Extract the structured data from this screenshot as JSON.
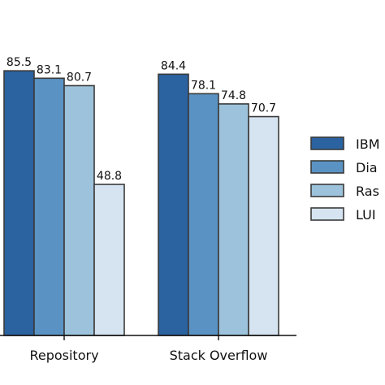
{
  "chart_data": {
    "type": "bar",
    "categories": [
      "Repository",
      "Stack Overflow"
    ],
    "series": [
      {
        "name": "IBM",
        "values": [
          85.5,
          84.4
        ],
        "color": "#2b62a0"
      },
      {
        "name": "Dia",
        "values": [
          83.1,
          78.1
        ],
        "color": "#5a93c3"
      },
      {
        "name": "Ras",
        "values": [
          80.7,
          74.8
        ],
        "color": "#9dc3dc"
      },
      {
        "name": "LUI",
        "values": [
          48.8,
          70.7
        ],
        "color": "#d6e4f1"
      }
    ],
    "ylim": [
      0,
      100
    ],
    "value_labels": [
      [
        "85.5",
        "84.4"
      ],
      [
        "83.1",
        "78.1"
      ],
      [
        "80.7",
        "74.8"
      ],
      [
        "48.8",
        "70.7"
      ]
    ],
    "legend_position": "right"
  }
}
